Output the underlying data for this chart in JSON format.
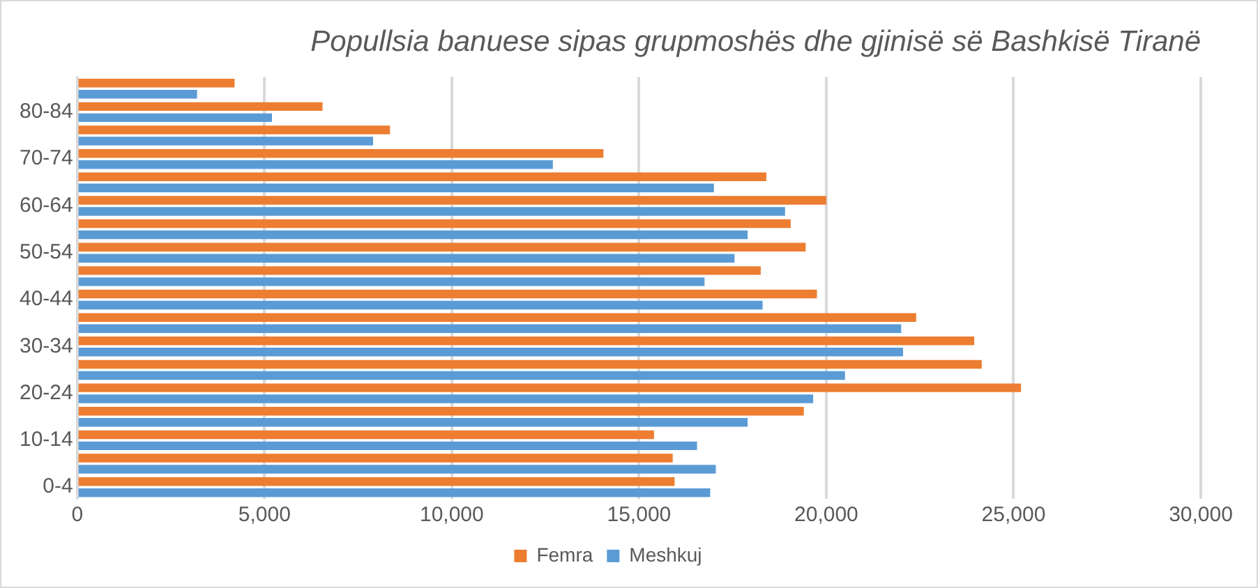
{
  "chart_data": {
    "type": "bar",
    "orientation": "horizontal",
    "title": "Popullsia banuese sipas grupmoshës dhe gjinisë së Bashkisë Tiranë",
    "categories": [
      null,
      "80-84",
      null,
      "70-74",
      null,
      "60-64",
      null,
      "50-54",
      null,
      "40-44",
      null,
      "30-34",
      null,
      "20-24",
      null,
      "10-14",
      null,
      "0-4"
    ],
    "series": [
      {
        "name": "Femra",
        "color": "#ed7d31",
        "values": [
          4200,
          6550,
          8350,
          14050,
          18400,
          20000,
          19050,
          19450,
          18250,
          19750,
          22400,
          23950,
          24150,
          25200,
          19400,
          15400,
          15900,
          15950
        ]
      },
      {
        "name": "Meshkuj",
        "color": "#5b9bd5",
        "values": [
          3200,
          5200,
          7900,
          12700,
          17000,
          18900,
          17900,
          17550,
          16750,
          18300,
          22000,
          22050,
          20500,
          19650,
          17900,
          16550,
          17050,
          16900
        ]
      }
    ],
    "xlim": [
      0,
      30000
    ],
    "xticks": [
      0,
      {
        "value": 5000,
        "label": "5,000"
      },
      {
        "value": 10000,
        "label": "10,000"
      },
      {
        "value": 15000,
        "label": "15,000"
      },
      {
        "value": 20000,
        "label": "20,000"
      },
      {
        "value": 25000,
        "label": "25,000"
      },
      {
        "value": 30000,
        "label": "30,000"
      }
    ],
    "grid": "x",
    "legend": "bottom"
  }
}
